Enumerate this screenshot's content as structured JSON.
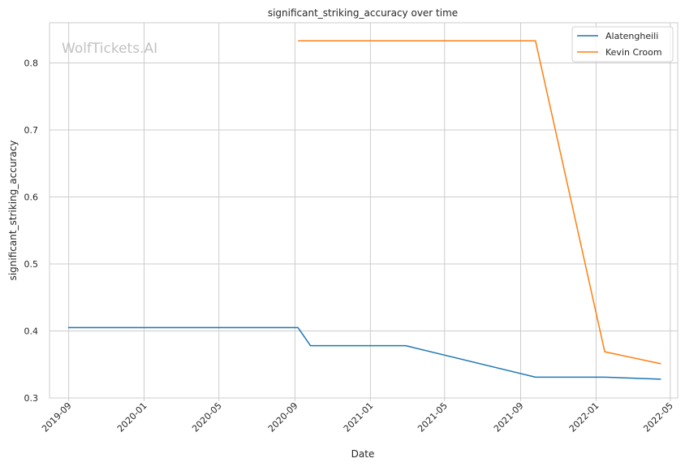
{
  "chart_data": {
    "type": "line",
    "title": "significant_striking_accuracy over time",
    "xlabel": "Date",
    "ylabel": "significant_striking_accuracy",
    "watermark": "WolfTickets.AI",
    "x_ticks": [
      "2019-09",
      "2020-01",
      "2020-05",
      "2020-09",
      "2021-01",
      "2021-05",
      "2021-09",
      "2022-01",
      "2022-05"
    ],
    "y_ticks": [
      "0.3",
      "0.4",
      "0.5",
      "0.6",
      "0.7",
      "0.8"
    ],
    "xlim": [
      "2019-08-01",
      "2022-05-13"
    ],
    "ylim": [
      0.3,
      0.86
    ],
    "grid": true,
    "legend_position": "top-right",
    "series": [
      {
        "name": "Alatengheili",
        "color": "#1f77b4",
        "points": [
          {
            "x": "2019-08-31",
            "y": 0.405
          },
          {
            "x": "2020-09-06",
            "y": 0.405
          },
          {
            "x": "2020-09-26",
            "y": 0.378
          },
          {
            "x": "2021-02-27",
            "y": 0.378
          },
          {
            "x": "2021-09-25",
            "y": 0.331
          },
          {
            "x": "2022-01-15",
            "y": 0.331
          },
          {
            "x": "2022-04-16",
            "y": 0.328
          }
        ]
      },
      {
        "name": "Kevin Croom",
        "color": "#ff7f0e",
        "points": [
          {
            "x": "2020-09-06",
            "y": 0.833
          },
          {
            "x": "2021-09-25",
            "y": 0.833
          },
          {
            "x": "2022-01-15",
            "y": 0.369
          },
          {
            "x": "2022-04-16",
            "y": 0.351
          }
        ]
      }
    ]
  }
}
